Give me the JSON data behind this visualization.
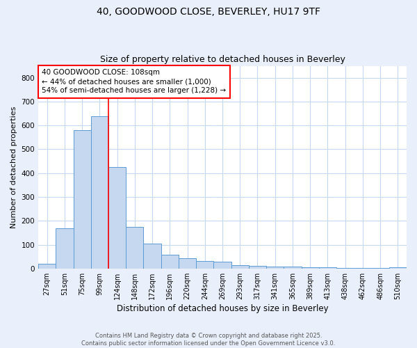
{
  "title": "40, GOODWOOD CLOSE, BEVERLEY, HU17 9TF",
  "subtitle": "Size of property relative to detached houses in Beverley",
  "xlabel": "Distribution of detached houses by size in Beverley",
  "ylabel": "Number of detached properties",
  "categories": [
    "27sqm",
    "51sqm",
    "75sqm",
    "99sqm",
    "124sqm",
    "148sqm",
    "172sqm",
    "196sqm",
    "220sqm",
    "244sqm",
    "269sqm",
    "293sqm",
    "317sqm",
    "341sqm",
    "365sqm",
    "389sqm",
    "413sqm",
    "438sqm",
    "462sqm",
    "486sqm",
    "510sqm"
  ],
  "values": [
    20,
    170,
    580,
    640,
    425,
    175,
    105,
    57,
    42,
    33,
    28,
    15,
    10,
    8,
    7,
    5,
    4,
    2,
    2,
    1,
    6
  ],
  "bar_color": "#c5d8f0",
  "bar_edgecolor": "#5b9bd5",
  "ylim": [
    0,
    850
  ],
  "yticks": [
    0,
    100,
    200,
    300,
    400,
    500,
    600,
    700,
    800
  ],
  "vline_x": 3.5,
  "vline_color": "red",
  "annotation_text": "40 GOODWOOD CLOSE: 108sqm\n← 44% of detached houses are smaller (1,000)\n54% of semi-detached houses are larger (1,228) →",
  "footer_line1": "Contains HM Land Registry data © Crown copyright and database right 2025.",
  "footer_line2": "Contains public sector information licensed under the Open Government Licence v3.0.",
  "bg_color": "#eaf0fb",
  "plot_bg_color": "#ffffff",
  "grid_color": "#c5d8f0"
}
